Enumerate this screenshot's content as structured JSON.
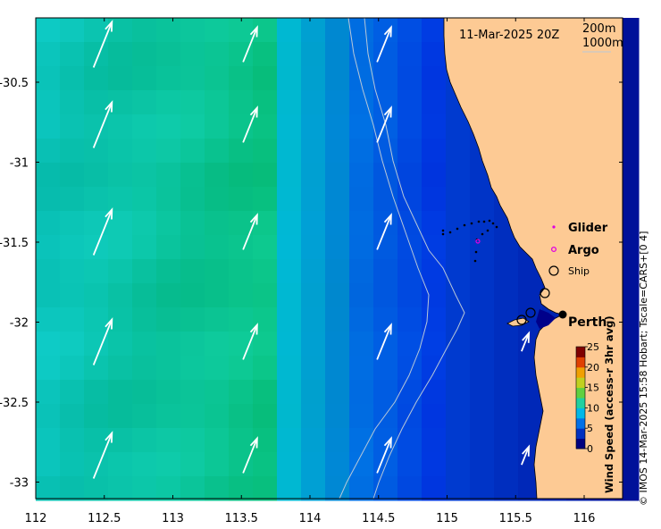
{
  "date_label": "11-Mar-2025 20Z",
  "isobaths": [
    "200m",
    "1000m"
  ],
  "legend": {
    "glider": {
      "label": "Glider",
      "color": "#e000e0"
    },
    "argo": {
      "label": "Argo",
      "color": "#e000e0"
    },
    "ship": {
      "label": "Ship"
    }
  },
  "city": {
    "label": "Perth"
  },
  "colorbar": {
    "title": "Wind Speed (access-r 3hr avg)",
    "ticks": [
      "25",
      "20",
      "15",
      "10",
      "5",
      "0"
    ],
    "colors": [
      "#00007f",
      "#0030c0",
      "#0070e8",
      "#00b8e8",
      "#20d0a0",
      "#60d040",
      "#c0d020",
      "#f0a000",
      "#e04000",
      "#800000"
    ]
  },
  "copyright": "© IMOS 14-Mar-2025 15:58 Hobart; Tscale=CARS+[0 4]",
  "axes": {
    "x_ticks": [
      "112",
      "112.5",
      "113",
      "113.5",
      "114",
      "114.5",
      "115",
      "115.5",
      "116"
    ],
    "y_ticks": [
      "-30.5",
      "-31",
      "-31.5",
      "-32",
      "-32.5",
      "-33"
    ]
  },
  "colors": {
    "land": "#fdca94",
    "wind_arrow": "#ffffff"
  },
  "icons": [
    "glider-marker-icon",
    "argo-marker-icon",
    "ship-marker-icon",
    "city-marker-icon"
  ]
}
